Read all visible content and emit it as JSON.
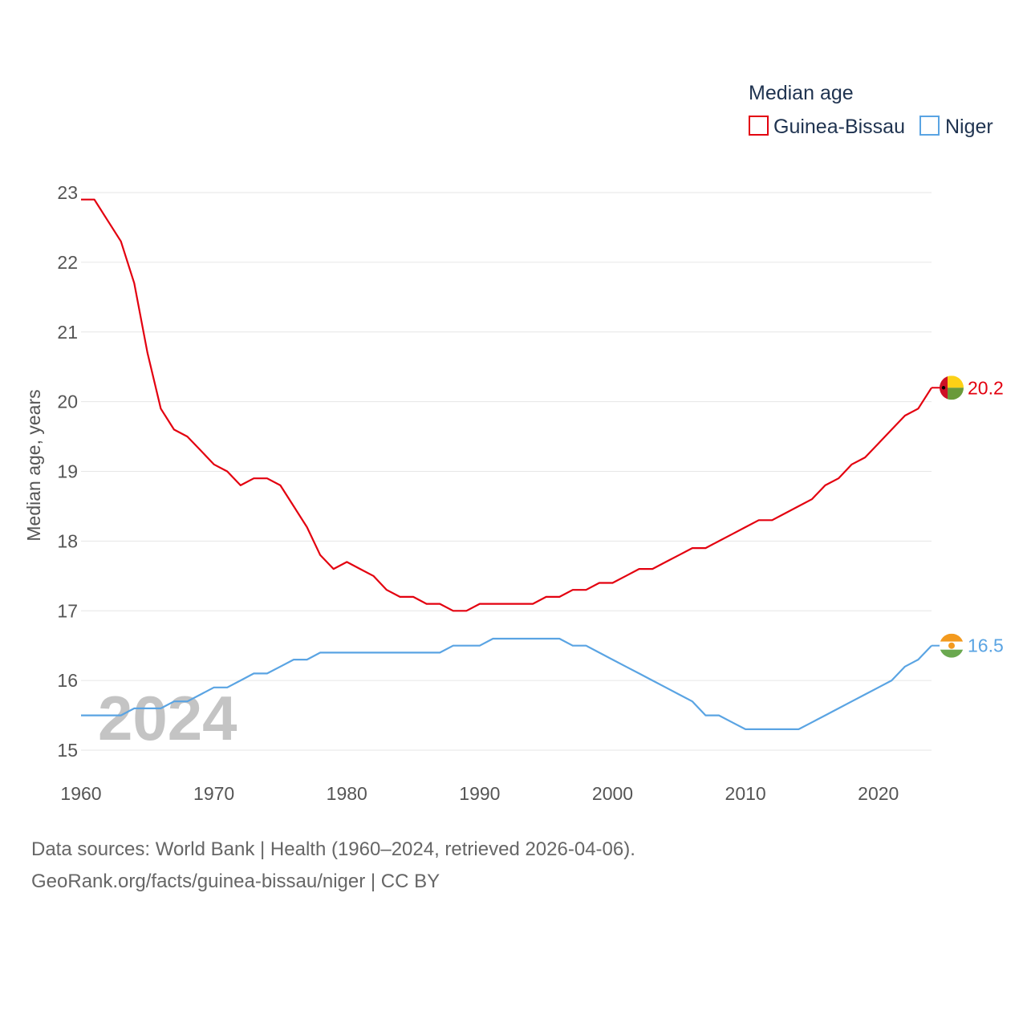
{
  "chart_data": {
    "type": "line",
    "legend_title": "Median age",
    "ylabel": "Median age, years",
    "xlabel": "",
    "xlim": [
      1960,
      2024
    ],
    "ylim": [
      15,
      23
    ],
    "x_ticks": [
      1960,
      1970,
      1980,
      1990,
      2000,
      2010,
      2020
    ],
    "y_ticks": [
      15,
      16,
      17,
      18,
      19,
      20,
      21,
      22,
      23
    ],
    "grid": true,
    "legend_position": "top-right",
    "year_watermark": "2024",
    "x": [
      1960,
      1961,
      1962,
      1963,
      1964,
      1965,
      1966,
      1967,
      1968,
      1969,
      1970,
      1971,
      1972,
      1973,
      1974,
      1975,
      1976,
      1977,
      1978,
      1979,
      1980,
      1981,
      1982,
      1983,
      1984,
      1985,
      1986,
      1987,
      1988,
      1989,
      1990,
      1991,
      1992,
      1993,
      1994,
      1995,
      1996,
      1997,
      1998,
      1999,
      2000,
      2001,
      2002,
      2003,
      2004,
      2005,
      2006,
      2007,
      2008,
      2009,
      2010,
      2011,
      2012,
      2013,
      2014,
      2015,
      2016,
      2017,
      2018,
      2019,
      2020,
      2021,
      2022,
      2023,
      2024
    ],
    "series": [
      {
        "name": "Guinea-Bissau",
        "color": "#e3000f",
        "end_label": "20.2",
        "values": [
          22.9,
          22.9,
          22.6,
          22.3,
          21.7,
          20.7,
          19.9,
          19.6,
          19.5,
          19.3,
          19.1,
          19.0,
          18.8,
          18.9,
          18.9,
          18.8,
          18.5,
          18.2,
          17.8,
          17.6,
          17.7,
          17.6,
          17.5,
          17.3,
          17.2,
          17.2,
          17.1,
          17.1,
          17.0,
          17.0,
          17.1,
          17.1,
          17.1,
          17.1,
          17.1,
          17.2,
          17.2,
          17.3,
          17.3,
          17.4,
          17.4,
          17.5,
          17.6,
          17.6,
          17.7,
          17.8,
          17.9,
          17.9,
          18.0,
          18.1,
          18.2,
          18.3,
          18.3,
          18.4,
          18.5,
          18.6,
          18.8,
          18.9,
          19.1,
          19.2,
          19.4,
          19.6,
          19.8,
          19.9,
          20.2
        ]
      },
      {
        "name": "Niger",
        "color": "#5aa4e3",
        "end_label": "16.5",
        "values": [
          15.5,
          15.5,
          15.5,
          15.5,
          15.6,
          15.6,
          15.6,
          15.7,
          15.7,
          15.8,
          15.9,
          15.9,
          16.0,
          16.1,
          16.1,
          16.2,
          16.3,
          16.3,
          16.4,
          16.4,
          16.4,
          16.4,
          16.4,
          16.4,
          16.4,
          16.4,
          16.4,
          16.4,
          16.5,
          16.5,
          16.5,
          16.6,
          16.6,
          16.6,
          16.6,
          16.6,
          16.6,
          16.5,
          16.5,
          16.4,
          16.3,
          16.2,
          16.1,
          16.0,
          15.9,
          15.8,
          15.7,
          15.5,
          15.5,
          15.4,
          15.3,
          15.3,
          15.3,
          15.3,
          15.3,
          15.4,
          15.5,
          15.6,
          15.7,
          15.8,
          15.9,
          16.0,
          16.2,
          16.3,
          16.5
        ]
      }
    ]
  },
  "footer": {
    "line1": "Data sources: World Bank | Health (1960–2024, retrieved 2026-04-06).",
    "line2": "GeoRank.org/facts/guinea-bissau/niger | CC BY"
  },
  "flags": {
    "guinea_bissau": {
      "red": "#ce1126",
      "yellow": "#fcd116",
      "green": "#6a9a3a",
      "star": "#000000"
    },
    "niger": {
      "orange": "#f39a1e",
      "white": "#ffffff",
      "green": "#6aa84f"
    }
  }
}
